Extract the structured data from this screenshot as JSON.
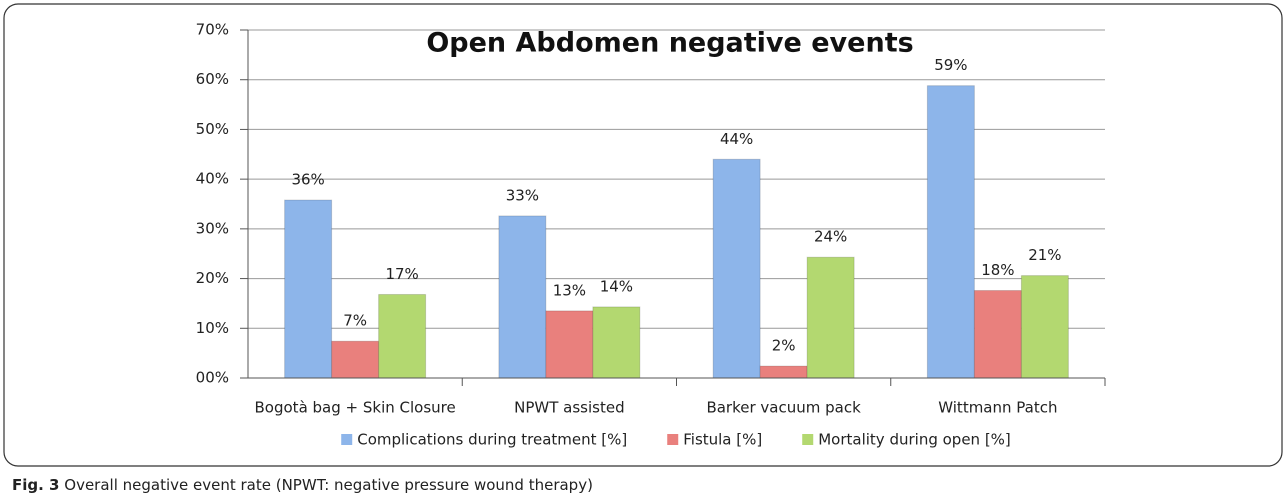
{
  "chart_data": {
    "type": "bar",
    "title": "Open Abdomen negative events",
    "categories": [
      "Bogotà bag + Skin Closure",
      "NPWT assisted",
      "Barker vacuum pack",
      "Wittmann Patch"
    ],
    "series": [
      {
        "name": "Complications during treatment [%]",
        "color": "#8db5ea",
        "values": [
          35.8,
          32.6,
          44,
          58.8
        ],
        "value_labels": [
          "36%",
          "33%",
          "44%",
          "59%"
        ]
      },
      {
        "name": "Fistula [%]",
        "color": "#e9807d",
        "values": [
          7.4,
          13.5,
          2.4,
          17.6
        ],
        "value_labels": [
          "7%",
          "13%",
          "2%",
          "18%"
        ]
      },
      {
        "name": "Mortality during open [%]",
        "color": "#b3d870",
        "values": [
          16.8,
          14.3,
          24.3,
          20.6
        ],
        "value_labels": [
          "17%",
          "14%",
          "24%",
          "21%"
        ]
      }
    ],
    "ylim": [
      0,
      70
    ],
    "yticks": [
      {
        "value": 0,
        "label": "00%"
      },
      {
        "value": 10,
        "label": "10%"
      },
      {
        "value": 20,
        "label": "20%"
      },
      {
        "value": 30,
        "label": "30%"
      },
      {
        "value": 40,
        "label": "40%"
      },
      {
        "value": 50,
        "label": "50%"
      },
      {
        "value": 60,
        "label": "60%"
      },
      {
        "value": 70,
        "label": "70%"
      }
    ],
    "grid": true,
    "legend": "bottom"
  },
  "caption": {
    "label": "Fig. 3",
    "text": "Overall negative event rate (NPWT: negative pressure wound therapy)"
  }
}
